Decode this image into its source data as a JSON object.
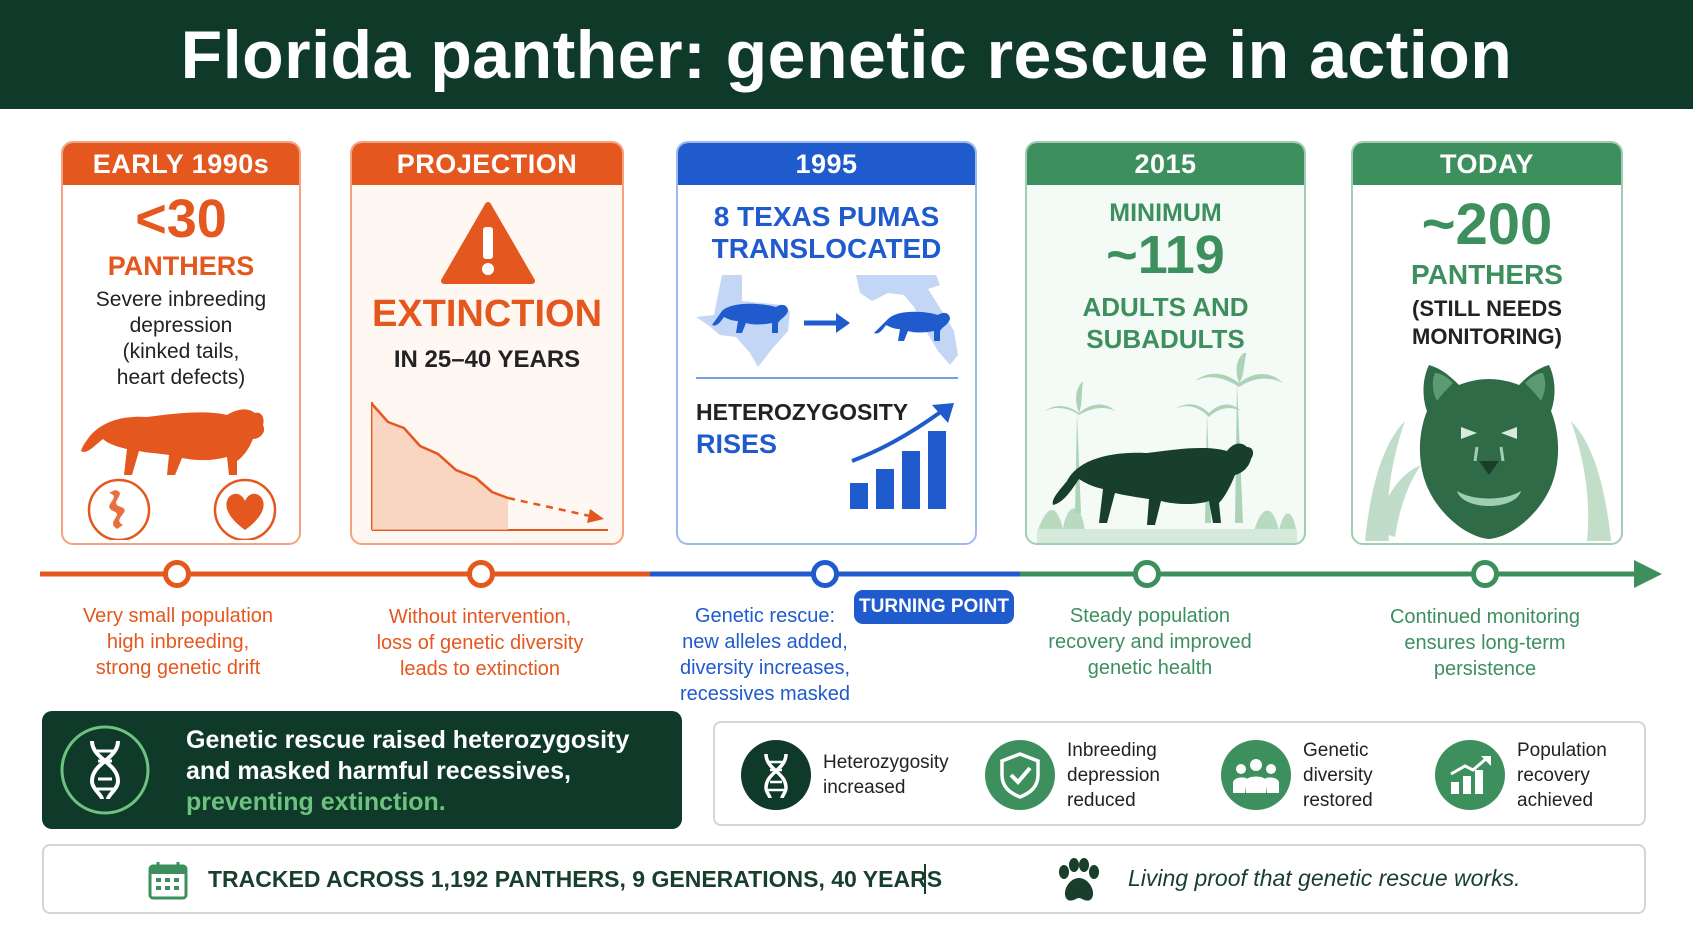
{
  "title": "Florida panther: genetic rescue in action",
  "colors": {
    "orange": "#e4571e",
    "blue": "#1f5bcd",
    "green": "#3d8f5e",
    "dark_green": "#0f3a2a",
    "light_green": "#6dc27f"
  },
  "cards": {
    "early": {
      "header": "EARLY 1990s",
      "count": "<30",
      "unit": "PANTHERS",
      "desc": [
        "Severe inbreeding",
        "depression",
        "(kinked tails,",
        "heart defects)"
      ]
    },
    "projection": {
      "header": "PROJECTION",
      "headline": "EXTINCTION",
      "sub": "IN 25–40 YEARS"
    },
    "rescue": {
      "header": "1995",
      "line1": "8 TEXAS PUMAS",
      "line2": "TRANSLOCATED",
      "het1": "HETEROZYGOSITY",
      "het2": "RISES"
    },
    "y2015": {
      "header": "2015",
      "line1": "MINIMUM",
      "count": "~119",
      "line2": "ADULTS AND",
      "line3": "SUBADULTS"
    },
    "today": {
      "header": "TODAY",
      "count": "~200",
      "unit": "PANTHERS",
      "note1": "(STILL NEEDS",
      "note2": "MONITORING)"
    }
  },
  "timeline": {
    "labels": [
      [
        "Very small population",
        "high inbreeding,",
        "strong genetic drift"
      ],
      [
        "Without intervention,",
        "loss of genetic diversity",
        "leads to extinction"
      ],
      [
        "Genetic rescue:",
        "new alleles added,",
        "diversity increases,",
        "recessives masked"
      ],
      [
        "Steady population",
        "recovery and improved",
        "genetic health"
      ],
      [
        "Continued monitoring",
        "ensures long-term",
        "persistence"
      ]
    ],
    "turning_point": "TURNING POINT"
  },
  "summary": {
    "line1": "Genetic rescue raised heterozygosity",
    "line2": "and masked harmful recessives,",
    "line3": "preventing extinction."
  },
  "benefits": [
    {
      "icon": "dna-icon",
      "lines": [
        "Heterozygosity",
        "increased"
      ]
    },
    {
      "icon": "shield-check-icon",
      "lines": [
        "Inbreeding",
        "depression",
        "reduced"
      ]
    },
    {
      "icon": "group-icon",
      "lines": [
        "Genetic",
        "diversity",
        "restored"
      ]
    },
    {
      "icon": "growth-chart-icon",
      "lines": [
        "Population",
        "recovery",
        "achieved"
      ]
    }
  ],
  "footer": {
    "tracked": "TRACKED ACROSS 1,192 PANTHERS, 9 GENERATIONS, 40 YEARS",
    "proof": "Living proof that genetic rescue works."
  }
}
